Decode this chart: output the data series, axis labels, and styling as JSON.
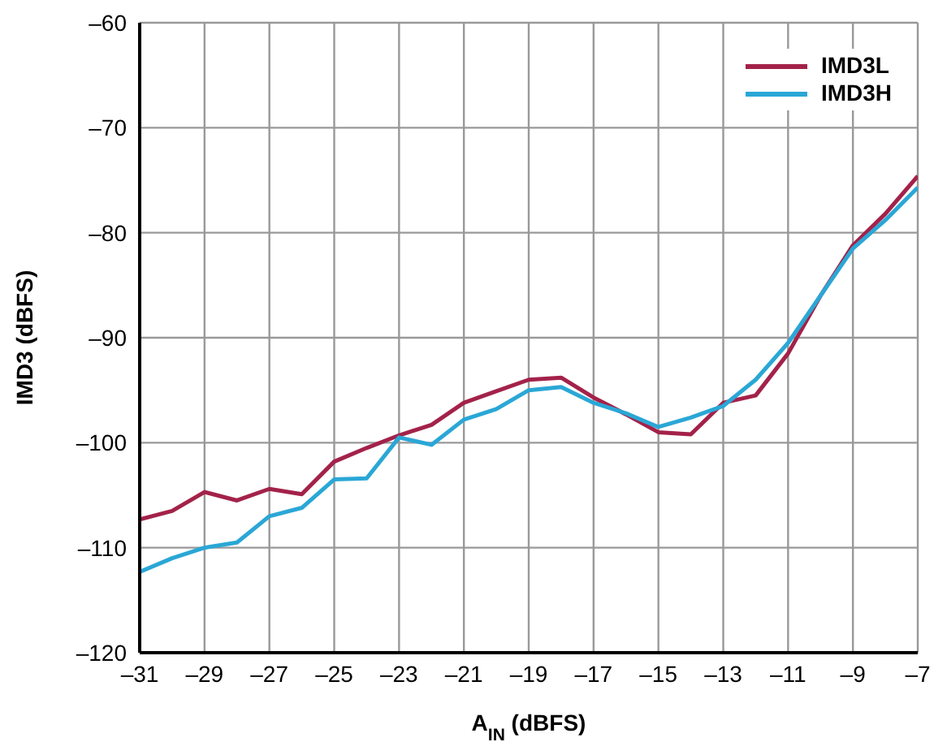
{
  "chart_data": {
    "type": "line",
    "xlabel": "A$_{IN}$ (dBFS)",
    "ylabel": "IMD3 (dBFS)",
    "x": [
      -31,
      -30,
      -29,
      -28,
      -27,
      -26,
      -25,
      -24,
      -23,
      -22,
      -21,
      -20,
      -19,
      -18,
      -17,
      -16,
      -15,
      -14,
      -13,
      -12,
      -11,
      -10,
      -9,
      -8,
      -7
    ],
    "series": [
      {
        "name": "IMD3L",
        "color": "#a3224a",
        "values": [
          -107.3,
          -106.5,
          -104.7,
          -105.5,
          -104.4,
          -104.9,
          -101.8,
          -100.5,
          -99.3,
          -98.3,
          -96.2,
          -95.1,
          -94.0,
          -93.8,
          -95.7,
          -97.3,
          -99.0,
          -99.2,
          -96.2,
          -95.5,
          -91.5,
          -86,
          -81.2,
          -78.2,
          -74.6
        ]
      },
      {
        "name": "IMD3H",
        "color": "#2aa7d6",
        "values": [
          -112.3,
          -111,
          -110,
          -109.5,
          -107,
          -106.2,
          -103.5,
          -103.4,
          -99.5,
          -100.2,
          -97.8,
          -96.8,
          -95.0,
          -94.7,
          -96.2,
          -97.2,
          -98.5,
          -97.6,
          -96.5,
          -94,
          -90.5,
          -86,
          -81.5,
          -78.8,
          -75.7
        ]
      }
    ],
    "xlim": [
      -31,
      -7
    ],
    "xticks": [
      {
        "value": -31,
        "label": "–31"
      },
      {
        "value": -29,
        "label": "–29"
      },
      {
        "value": -27,
        "label": "–27"
      },
      {
        "value": -25,
        "label": "–25"
      },
      {
        "value": -23,
        "label": "–23"
      },
      {
        "value": -21,
        "label": "–21"
      },
      {
        "value": -19,
        "label": "–19"
      },
      {
        "value": -17,
        "label": "–17"
      },
      {
        "value": -15,
        "label": "–15"
      },
      {
        "value": -13,
        "label": "–13"
      },
      {
        "value": -11,
        "label": "–11"
      },
      {
        "value": -9,
        "label": "–9"
      },
      {
        "value": -7,
        "label": "–7"
      }
    ],
    "ylim": [
      -120,
      -60
    ],
    "yticks": [
      {
        "value": -120,
        "label": "–120"
      },
      {
        "value": -110,
        "label": "–110"
      },
      {
        "value": -100,
        "label": "–100"
      },
      {
        "value": -90,
        "label": "–90"
      },
      {
        "value": -80,
        "label": "–80"
      },
      {
        "value": -70,
        "label": "–70"
      },
      {
        "value": -60,
        "label": "–60"
      }
    ],
    "grid": true,
    "legend": "top right",
    "marker": "none",
    "line_style": "solid"
  }
}
